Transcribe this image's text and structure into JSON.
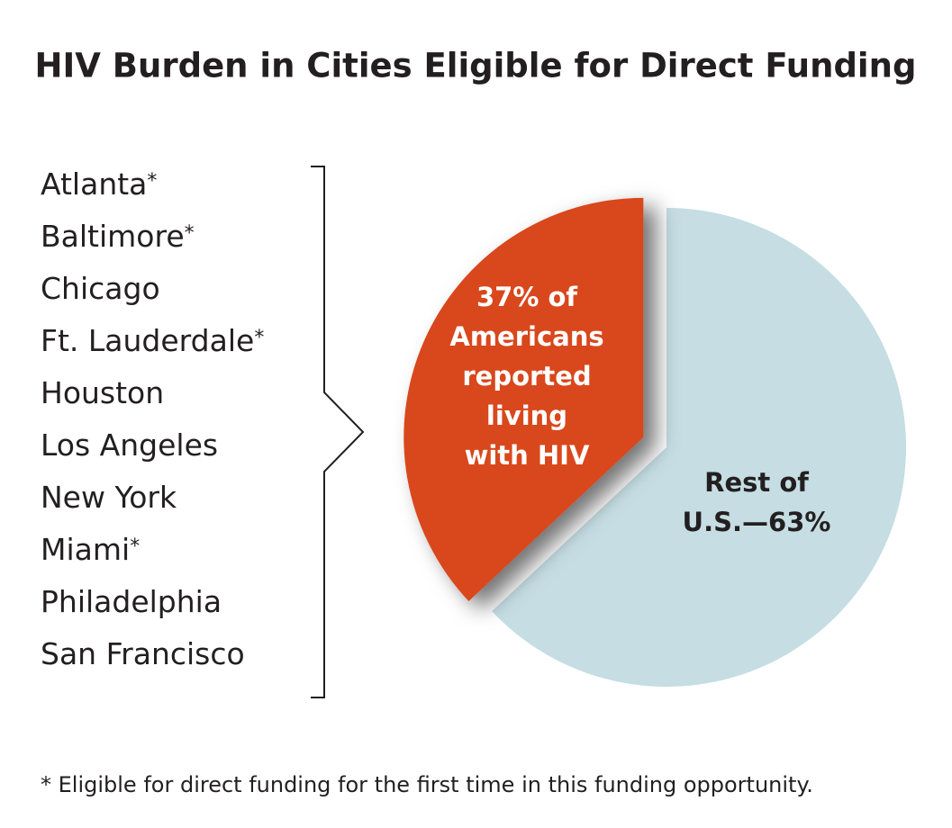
{
  "chart_data": {
    "type": "pie",
    "title": "HIV Burden in Cities Eligible for Direct Funding",
    "values": [
      37,
      63
    ],
    "value_labels": [
      [
        "37% of",
        "Americans",
        "reported",
        "living",
        "with HIV"
      ],
      [
        "Rest of",
        "U.S.—63%"
      ]
    ],
    "colors": [
      "#d9461f",
      "#c5dde3"
    ],
    "label_colors": [
      "#ffffff",
      "#231f20"
    ],
    "cities": [
      {
        "name": "Atlanta",
        "note": "*"
      },
      {
        "name": "Baltimore",
        "note": "*"
      },
      {
        "name": "Chicago"
      },
      {
        "name": "Ft. Lauderdale",
        "note": "*"
      },
      {
        "name": "Houston"
      },
      {
        "name": "Los Angeles"
      },
      {
        "name": "New York"
      },
      {
        "name": "Miami",
        "note": "*"
      },
      {
        "name": "Philadelphia"
      },
      {
        "name": "San Francisco"
      }
    ],
    "footnote": "* Eligible for direct funding for the first time in this funding opportunity."
  }
}
